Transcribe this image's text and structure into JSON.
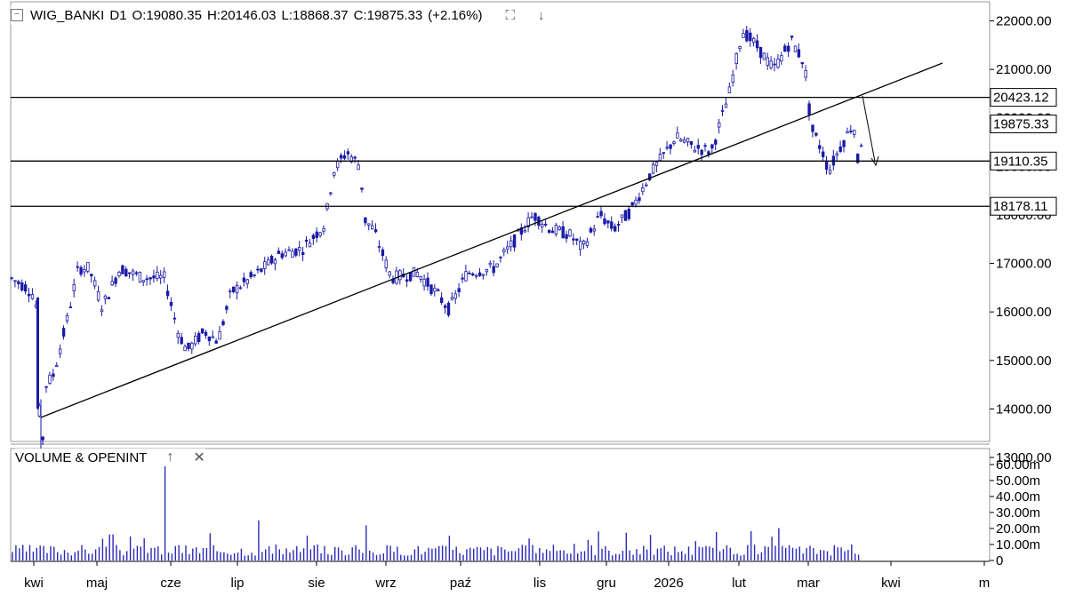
{
  "header": {
    "symbol": "WIG_BANKI",
    "interval": "D1",
    "open": "O:19080.35",
    "high": "H:20146.03",
    "low": "L:18868.37",
    "close": "C:19875.33",
    "change": "(+2.16%)",
    "collapse_icon": "collapse-icon",
    "maximize_icon": "maximize-icon",
    "download_icon": "arrow-down-icon"
  },
  "volume_panel": {
    "title": "VOLUME & OPENINT",
    "up_icon": "arrow-up-icon",
    "close_icon": "close-icon",
    "axis_labels": [
      "60.00m",
      "50.00m",
      "40.00m",
      "30.00m",
      "20.00m",
      "10.00m",
      "0"
    ]
  },
  "price_axis": {
    "labels": [
      "22000.00",
      "21000.00",
      "20000.00",
      "19000.00",
      "18000.00",
      "17000.00",
      "16000.00",
      "15000.00",
      "14000.00",
      "13000.00"
    ]
  },
  "horizontal_levels": [
    {
      "label": "20423.12",
      "value": 20423.12
    },
    {
      "label": "19875.33",
      "value": 19875.33
    },
    {
      "label": "19110.35",
      "value": 19110.35
    },
    {
      "label": "18178.11",
      "value": 18178.11
    }
  ],
  "time_axis": {
    "labels": [
      "kwi",
      "maj",
      "cze",
      "lip",
      "sie",
      "wrz",
      "paź",
      "lis",
      "gru",
      "2026",
      "lut",
      "mar",
      "kwi",
      "m"
    ]
  },
  "colors": {
    "candle": "#1a1aa8",
    "volume": "#2a2ab8",
    "line": "#000000",
    "grid": "#000000"
  },
  "chart_data": {
    "type": "candlestick",
    "title": "WIG_BANKI D1",
    "ylim": [
      12700,
      22400
    ],
    "key_points": [
      {
        "x": "kwi",
        "y": 16700
      },
      {
        "x": "kwi",
        "y": 13000
      },
      {
        "x": "maj",
        "y": 16900
      },
      {
        "x": "cze",
        "y": 15100
      },
      {
        "x": "sie",
        "y": 19300
      },
      {
        "x": "wrz",
        "y": 17800
      },
      {
        "x": "paź",
        "y": 16050
      },
      {
        "x": "lis",
        "y": 18100
      },
      {
        "x": "gru",
        "y": 17500
      },
      {
        "x": "2026",
        "y": 20400
      },
      {
        "x": "lut",
        "y": 21900
      },
      {
        "x": "mar",
        "y": 19300
      },
      {
        "x": "kwi",
        "y": 19875.33
      }
    ],
    "trendline": [
      {
        "x": "kwi",
        "y": 13000
      },
      {
        "x": "kwi",
        "y": 20800
      }
    ],
    "volume_series_m": "daily, mostly 5–15m, spike ~62m at cze"
  }
}
